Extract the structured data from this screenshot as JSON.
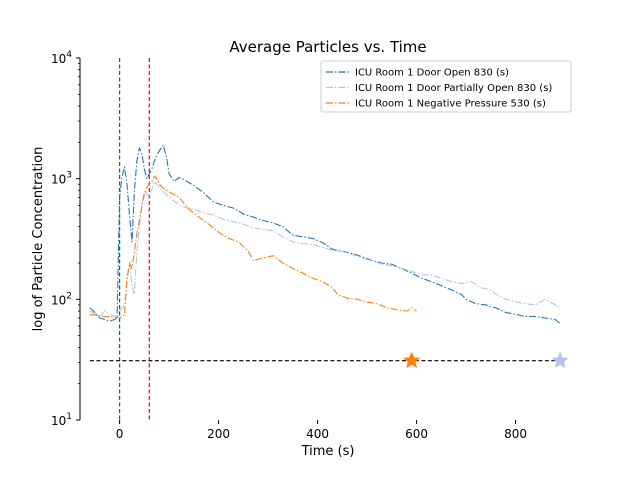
{
  "chart_data": {
    "type": "line",
    "title": "Average Particles vs. Time",
    "xlabel": "Time (s)",
    "ylabel": "log of Particle Concentration",
    "yscale": "log",
    "xlim": [
      -80,
      920
    ],
    "ylim": [
      10,
      10000
    ],
    "grid": false,
    "legend_position": "top-right",
    "x_ticks": [
      {
        "value": 0,
        "label": "0"
      },
      {
        "value": 200,
        "label": "200"
      },
      {
        "value": 400,
        "label": "400"
      },
      {
        "value": 600,
        "label": "600"
      },
      {
        "value": 800,
        "label": "800"
      }
    ],
    "y_ticks": [
      {
        "value": 10,
        "base": "10",
        "exp": "1"
      },
      {
        "value": 100,
        "base": "10",
        "exp": "2"
      },
      {
        "value": 1000,
        "base": "10",
        "exp": "3"
      },
      {
        "value": 10000,
        "base": "10",
        "exp": "4"
      }
    ],
    "series": [
      {
        "name": "ICU Room 1 Door Open 830 (s)",
        "color": "#1f77b4",
        "dash": "dashdot",
        "points": [
          [
            -60,
            85
          ],
          [
            -50,
            78
          ],
          [
            -40,
            70
          ],
          [
            -30,
            68
          ],
          [
            -20,
            66
          ],
          [
            -10,
            68
          ],
          [
            -5,
            70
          ],
          [
            0,
            700
          ],
          [
            5,
            1050
          ],
          [
            10,
            1250
          ],
          [
            15,
            900
          ],
          [
            20,
            500
          ],
          [
            25,
            300
          ],
          [
            30,
            800
          ],
          [
            35,
            1400
          ],
          [
            40,
            1800
          ],
          [
            45,
            1600
          ],
          [
            50,
            1200
          ],
          [
            55,
            1000
          ],
          [
            60,
            1100
          ],
          [
            65,
            1200
          ],
          [
            70,
            1400
          ],
          [
            80,
            1700
          ],
          [
            88,
            1900
          ],
          [
            95,
            1500
          ],
          [
            100,
            1100
          ],
          [
            110,
            950
          ],
          [
            120,
            1020
          ],
          [
            130,
            980
          ],
          [
            150,
            880
          ],
          [
            170,
            760
          ],
          [
            190,
            640
          ],
          [
            210,
            600
          ],
          [
            230,
            570
          ],
          [
            250,
            510
          ],
          [
            270,
            480
          ],
          [
            290,
            450
          ],
          [
            310,
            430
          ],
          [
            330,
            400
          ],
          [
            350,
            340
          ],
          [
            370,
            330
          ],
          [
            390,
            320
          ],
          [
            410,
            295
          ],
          [
            430,
            260
          ],
          [
            450,
            250
          ],
          [
            470,
            240
          ],
          [
            490,
            225
          ],
          [
            510,
            210
          ],
          [
            530,
            200
          ],
          [
            550,
            195
          ],
          [
            570,
            180
          ],
          [
            590,
            165
          ],
          [
            610,
            150
          ],
          [
            630,
            140
          ],
          [
            650,
            130
          ],
          [
            670,
            120
          ],
          [
            690,
            110
          ],
          [
            700,
            100
          ],
          [
            720,
            92
          ],
          [
            740,
            90
          ],
          [
            760,
            85
          ],
          [
            780,
            78
          ],
          [
            800,
            75
          ],
          [
            820,
            72
          ],
          [
            840,
            72
          ],
          [
            860,
            70
          ],
          [
            880,
            68
          ],
          [
            890,
            63
          ]
        ]
      },
      {
        "name": "ICU Room 1 Door Partially Open 830 (s)",
        "color": "#aec7e8",
        "dash": "dashdot",
        "points": [
          [
            -60,
            80
          ],
          [
            -50,
            76
          ],
          [
            -40,
            72
          ],
          [
            -30,
            80
          ],
          [
            -20,
            75
          ],
          [
            -10,
            72
          ],
          [
            -5,
            74
          ],
          [
            0,
            80
          ],
          [
            5,
            85
          ],
          [
            10,
            90
          ],
          [
            15,
            140
          ],
          [
            20,
            200
          ],
          [
            25,
            130
          ],
          [
            30,
            110
          ],
          [
            35,
            250
          ],
          [
            40,
            400
          ],
          [
            45,
            600
          ],
          [
            50,
            800
          ],
          [
            55,
            750
          ],
          [
            60,
            700
          ],
          [
            65,
            820
          ],
          [
            70,
            950
          ],
          [
            80,
            850
          ],
          [
            90,
            760
          ],
          [
            110,
            650
          ],
          [
            130,
            580
          ],
          [
            150,
            560
          ],
          [
            170,
            520
          ],
          [
            190,
            500
          ],
          [
            210,
            460
          ],
          [
            230,
            440
          ],
          [
            250,
            420
          ],
          [
            270,
            390
          ],
          [
            290,
            380
          ],
          [
            310,
            370
          ],
          [
            330,
            330
          ],
          [
            350,
            300
          ],
          [
            370,
            290
          ],
          [
            390,
            285
          ],
          [
            410,
            270
          ],
          [
            430,
            255
          ],
          [
            450,
            250
          ],
          [
            470,
            235
          ],
          [
            490,
            220
          ],
          [
            510,
            210
          ],
          [
            530,
            195
          ],
          [
            550,
            190
          ],
          [
            570,
            180
          ],
          [
            590,
            170
          ],
          [
            610,
            160
          ],
          [
            630,
            158
          ],
          [
            650,
            150
          ],
          [
            670,
            140
          ],
          [
            690,
            135
          ],
          [
            710,
            140
          ],
          [
            730,
            125
          ],
          [
            750,
            120
          ],
          [
            760,
            110
          ],
          [
            780,
            100
          ],
          [
            800,
            95
          ],
          [
            820,
            92
          ],
          [
            840,
            90
          ],
          [
            860,
            100
          ],
          [
            880,
            90
          ],
          [
            890,
            85
          ]
        ]
      },
      {
        "name": "ICU Room 1 Negative Pressure 530 (s)",
        "color": "#ff7f0e",
        "dash": "dashdot",
        "points": [
          [
            -60,
            75
          ],
          [
            -50,
            74
          ],
          [
            -40,
            73
          ],
          [
            -30,
            72
          ],
          [
            -20,
            72
          ],
          [
            -10,
            71
          ],
          [
            0,
            70
          ],
          [
            5,
            72
          ],
          [
            10,
            75
          ],
          [
            15,
            150
          ],
          [
            20,
            200
          ],
          [
            25,
            180
          ],
          [
            30,
            250
          ],
          [
            35,
            350
          ],
          [
            40,
            450
          ],
          [
            45,
            600
          ],
          [
            50,
            750
          ],
          [
            55,
            850
          ],
          [
            60,
            900
          ],
          [
            65,
            950
          ],
          [
            70,
            1050
          ],
          [
            75,
            1000
          ],
          [
            80,
            900
          ],
          [
            90,
            820
          ],
          [
            100,
            780
          ],
          [
            120,
            700
          ],
          [
            140,
            560
          ],
          [
            160,
            480
          ],
          [
            180,
            420
          ],
          [
            200,
            360
          ],
          [
            220,
            320
          ],
          [
            240,
            300
          ],
          [
            260,
            250
          ],
          [
            270,
            210
          ],
          [
            290,
            220
          ],
          [
            310,
            230
          ],
          [
            330,
            200
          ],
          [
            350,
            180
          ],
          [
            370,
            165
          ],
          [
            390,
            150
          ],
          [
            410,
            140
          ],
          [
            430,
            125
          ],
          [
            440,
            110
          ],
          [
            460,
            102
          ],
          [
            480,
            100
          ],
          [
            500,
            95
          ],
          [
            520,
            92
          ],
          [
            540,
            85
          ],
          [
            560,
            82
          ],
          [
            580,
            80
          ],
          [
            590,
            85
          ],
          [
            600,
            80
          ]
        ]
      }
    ],
    "reference_lines": [
      {
        "orientation": "vertical",
        "x": 0,
        "color": "#008000",
        "style": "dashed"
      },
      {
        "orientation": "vertical",
        "x": 60,
        "color": "#ff0000",
        "style": "dashed"
      },
      {
        "orientation": "horizontal",
        "y": 31,
        "x_range": [
          -60,
          890
        ],
        "color": "#000000",
        "style": "dashed"
      }
    ],
    "markers": [
      {
        "x": 590,
        "y": 31,
        "shape": "star",
        "color": "#ff7f0e"
      },
      {
        "x": 890,
        "y": 31,
        "shape": "star",
        "color": "#aec7e8"
      }
    ]
  }
}
